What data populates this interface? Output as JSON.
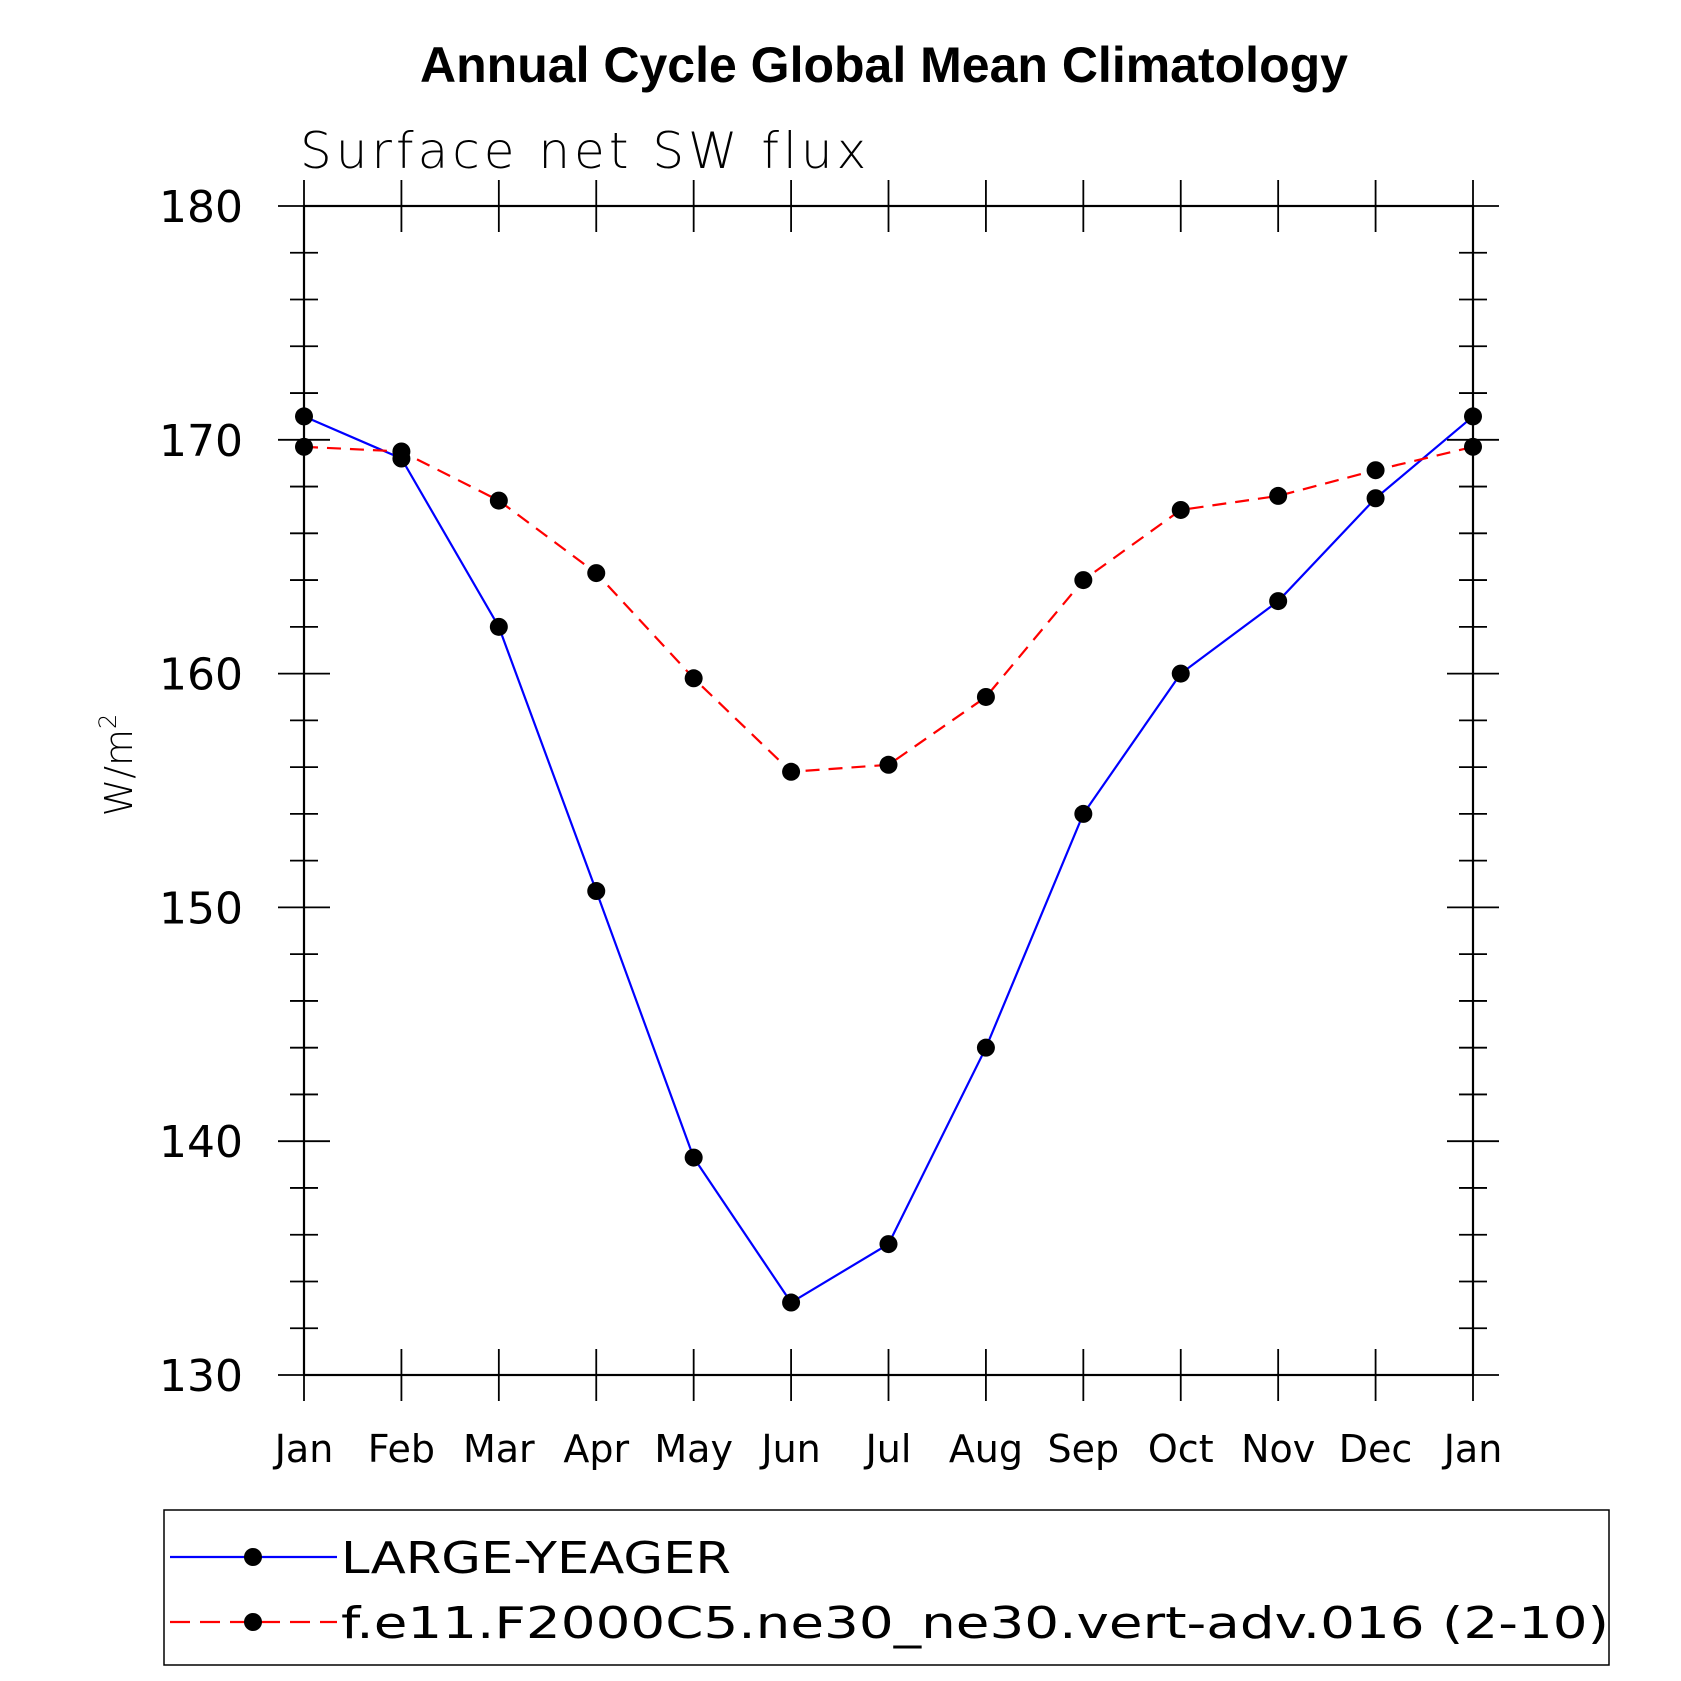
{
  "title": "Annual Cycle Global Mean Climatology",
  "chart_data": {
    "type": "line",
    "title": "Annual Cycle Global Mean Climatology",
    "subtitle": "Surface net SW flux",
    "ylabel_main": "W/m",
    "ylabel_sup": "2",
    "ylim": [
      130,
      180
    ],
    "yticks": [
      130,
      140,
      150,
      160,
      170,
      180
    ],
    "categories": [
      "Jan",
      "Feb",
      "Mar",
      "Apr",
      "May",
      "Jun",
      "Jul",
      "Aug",
      "Sep",
      "Oct",
      "Nov",
      "Dec",
      "Jan"
    ],
    "grid": false,
    "legend_position": "bottom",
    "series": [
      {
        "name": "LARGE-YEAGER",
        "color": "#0000ff",
        "line_style": "solid",
        "marker": "filled-circle",
        "values": [
          171.0,
          169.2,
          162.0,
          150.7,
          139.3,
          133.1,
          135.6,
          144.0,
          154.0,
          160.0,
          163.1,
          167.5,
          171.0
        ]
      },
      {
        "name": "f.e11.F2000C5.ne30_ne30.vert-adv.016 (2-10)",
        "color": "#ff0000",
        "line_style": "dashed",
        "marker": "filled-circle",
        "values": [
          169.7,
          169.5,
          167.4,
          164.3,
          159.8,
          155.8,
          156.1,
          159.0,
          164.0,
          167.0,
          167.6,
          168.7,
          169.7
        ]
      }
    ]
  }
}
